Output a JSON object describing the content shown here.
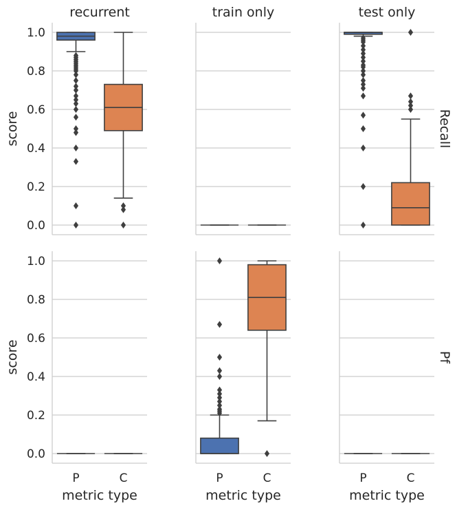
{
  "chart_data": {
    "type": "box",
    "layout": "facet-grid 2 rows x 3 columns, shared y axis",
    "col_titles": [
      "recurrent",
      "train only",
      "test only"
    ],
    "row_titles": [
      "Recall",
      "Pf"
    ],
    "xlabel": "metric type",
    "ylabel": "score",
    "categories": [
      "P",
      "C"
    ],
    "ylim": [
      -0.05,
      1.05
    ],
    "yticks": [
      0.0,
      0.2,
      0.4,
      0.6,
      0.8,
      1.0
    ],
    "ytick_labels": [
      "0.0",
      "0.2",
      "0.4",
      "0.6",
      "0.8",
      "1.0"
    ],
    "grid": "horizontal",
    "colors": {
      "P": "#4c72b0",
      "C": "#dd8452",
      "line": "#3f3f3f",
      "grid": "#cccccc"
    },
    "panels": [
      {
        "row": "Recall",
        "col": "recurrent",
        "boxes": [
          {
            "category": "P",
            "q1": 0.96,
            "median": 0.98,
            "q3": 1.0,
            "whisker_low": 0.9,
            "whisker_high": 1.0,
            "outliers": [
              0.0,
              0.1,
              0.33,
              0.4,
              0.48,
              0.5,
              0.56,
              0.6,
              0.63,
              0.65,
              0.67,
              0.7,
              0.72,
              0.75,
              0.78,
              0.8,
              0.81,
              0.82,
              0.83,
              0.84,
              0.85,
              0.86,
              0.87,
              0.88
            ]
          },
          {
            "category": "C",
            "q1": 0.49,
            "median": 0.61,
            "q3": 0.73,
            "whisker_low": 0.14,
            "whisker_high": 1.0,
            "outliers": [
              0.0,
              0.08,
              0.1
            ]
          }
        ]
      },
      {
        "row": "Recall",
        "col": "train only",
        "boxes": [
          {
            "category": "P",
            "q1": 0.0,
            "median": 0.0,
            "q3": 0.0,
            "whisker_low": 0.0,
            "whisker_high": 0.0,
            "outliers": []
          },
          {
            "category": "C",
            "q1": 0.0,
            "median": 0.0,
            "q3": 0.0,
            "whisker_low": 0.0,
            "whisker_high": 0.0,
            "outliers": []
          }
        ]
      },
      {
        "row": "Recall",
        "col": "test only",
        "boxes": [
          {
            "category": "P",
            "q1": 0.99,
            "median": 1.0,
            "q3": 1.0,
            "whisker_low": 0.98,
            "whisker_high": 1.0,
            "outliers": [
              0.0,
              0.2,
              0.4,
              0.5,
              0.57,
              0.67,
              0.71,
              0.73,
              0.75,
              0.78,
              0.8,
              0.82,
              0.83,
              0.85,
              0.87,
              0.89,
              0.91,
              0.93,
              0.95,
              0.96,
              0.97
            ]
          },
          {
            "category": "C",
            "q1": 0.0,
            "median": 0.09,
            "q3": 0.22,
            "whisker_low": 0.0,
            "whisker_high": 0.55,
            "outliers": [
              0.6,
              0.62,
              0.64,
              0.67,
              1.0
            ]
          }
        ]
      },
      {
        "row": "Pf",
        "col": "recurrent",
        "boxes": [
          {
            "category": "P",
            "q1": 0.0,
            "median": 0.0,
            "q3": 0.0,
            "whisker_low": 0.0,
            "whisker_high": 0.0,
            "outliers": []
          },
          {
            "category": "C",
            "q1": 0.0,
            "median": 0.0,
            "q3": 0.0,
            "whisker_low": 0.0,
            "whisker_high": 0.0,
            "outliers": []
          }
        ]
      },
      {
        "row": "Pf",
        "col": "train only",
        "boxes": [
          {
            "category": "P",
            "q1": 0.0,
            "median": 0.0,
            "q3": 0.08,
            "whisker_low": 0.0,
            "whisker_high": 0.2,
            "outliers": [
              0.21,
              0.22,
              0.23,
              0.25,
              0.27,
              0.29,
              0.31,
              0.33,
              0.4,
              0.43,
              0.5,
              0.67,
              1.0
            ]
          },
          {
            "category": "C",
            "q1": 0.64,
            "median": 0.81,
            "q3": 0.98,
            "whisker_low": 0.17,
            "whisker_high": 1.0,
            "outliers": [
              0.0
            ]
          }
        ]
      },
      {
        "row": "Pf",
        "col": "test only",
        "boxes": [
          {
            "category": "P",
            "q1": 0.0,
            "median": 0.0,
            "q3": 0.0,
            "whisker_low": 0.0,
            "whisker_high": 0.0,
            "outliers": []
          },
          {
            "category": "C",
            "q1": 0.0,
            "median": 0.0,
            "q3": 0.0,
            "whisker_low": 0.0,
            "whisker_high": 0.0,
            "outliers": []
          }
        ]
      }
    ]
  }
}
